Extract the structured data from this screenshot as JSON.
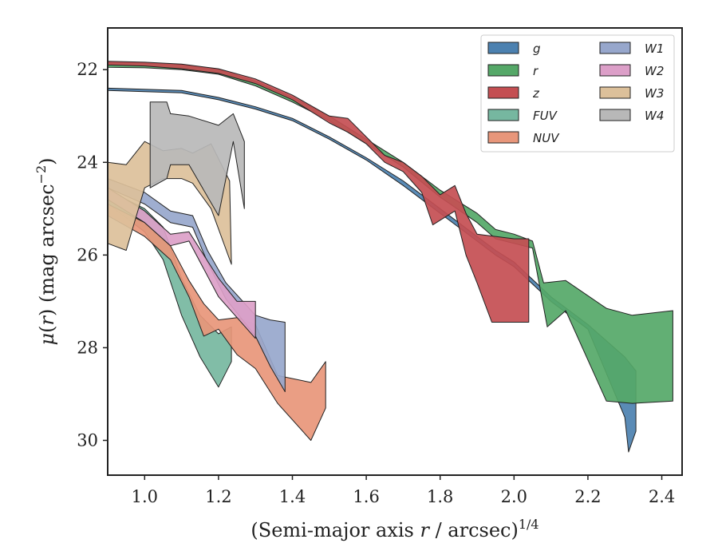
{
  "chart_data": {
    "type": "area",
    "xlabel": "(Semi-major axis r / arcsec)^1/4",
    "xlabel_parts": {
      "pre": "(Semi-major axis ",
      "var": "r",
      "post": " / arcsec)",
      "sup": "1/4"
    },
    "ylabel": "μ(r) (mag arcsec^−2)",
    "ylabel_parts": {
      "var1": "μ",
      "open": "(",
      "var2": "r",
      "close": ")",
      "rest": " (mag arcsec",
      "sup": "−2",
      "end": ")"
    },
    "xlim": [
      0.9,
      2.455
    ],
    "ylim": [
      30.75,
      21.1
    ],
    "y_inverted": true,
    "xticks": [
      1.0,
      1.2,
      1.4,
      1.6,
      1.8,
      2.0,
      2.2,
      2.4
    ],
    "xtick_labels": [
      "1.0",
      "1.2",
      "1.4",
      "1.6",
      "1.8",
      "2.0",
      "2.2",
      "2.4"
    ],
    "yticks": [
      22,
      24,
      26,
      28,
      30
    ],
    "ytick_labels": [
      "22",
      "24",
      "26",
      "28",
      "30"
    ],
    "grid": false,
    "legend": {
      "placement": "top-right",
      "columns": 2
    },
    "series": [
      {
        "name": "g",
        "color": "#4c81b0",
        "upper": [
          [
            0.9,
            22.4
          ],
          [
            1.1,
            22.45
          ],
          [
            1.2,
            22.6
          ],
          [
            1.3,
            22.8
          ],
          [
            1.4,
            23.05
          ],
          [
            1.5,
            23.45
          ],
          [
            1.6,
            23.9
          ],
          [
            1.7,
            24.4
          ],
          [
            1.8,
            25.0
          ],
          [
            1.9,
            25.6
          ],
          [
            1.95,
            25.9
          ],
          [
            2.0,
            26.15
          ],
          [
            2.1,
            26.9
          ],
          [
            2.2,
            27.5
          ],
          [
            2.3,
            28.2
          ],
          [
            2.33,
            28.5
          ]
        ],
        "lower": [
          [
            0.9,
            22.45
          ],
          [
            1.1,
            22.5
          ],
          [
            1.2,
            22.65
          ],
          [
            1.3,
            22.85
          ],
          [
            1.4,
            23.1
          ],
          [
            1.5,
            23.5
          ],
          [
            1.6,
            23.95
          ],
          [
            1.7,
            24.5
          ],
          [
            1.8,
            25.1
          ],
          [
            1.9,
            25.7
          ],
          [
            1.95,
            26.0
          ],
          [
            2.0,
            26.25
          ],
          [
            2.1,
            27.0
          ],
          [
            2.2,
            27.6
          ],
          [
            2.3,
            29.5
          ],
          [
            2.31,
            30.25
          ],
          [
            2.33,
            29.8
          ]
        ]
      },
      {
        "name": "r",
        "color": "#55a868",
        "upper": [
          [
            0.9,
            21.85
          ],
          [
            1.0,
            21.86
          ],
          [
            1.1,
            21.9
          ],
          [
            1.2,
            22.0
          ],
          [
            1.3,
            22.25
          ],
          [
            1.4,
            22.6
          ],
          [
            1.5,
            23.0
          ],
          [
            1.6,
            23.5
          ],
          [
            1.7,
            24.0
          ],
          [
            1.8,
            24.6
          ],
          [
            1.9,
            25.1
          ],
          [
            1.95,
            25.45
          ],
          [
            2.0,
            25.55
          ],
          [
            2.05,
            25.7
          ],
          [
            2.08,
            26.6
          ],
          [
            2.14,
            26.55
          ],
          [
            2.25,
            27.15
          ],
          [
            2.32,
            27.3
          ],
          [
            2.43,
            27.2
          ]
        ],
        "lower": [
          [
            0.9,
            21.95
          ],
          [
            1.0,
            21.96
          ],
          [
            1.1,
            22.0
          ],
          [
            1.2,
            22.1
          ],
          [
            1.3,
            22.35
          ],
          [
            1.4,
            22.7
          ],
          [
            1.5,
            23.1
          ],
          [
            1.6,
            23.6
          ],
          [
            1.7,
            24.1
          ],
          [
            1.8,
            24.75
          ],
          [
            1.9,
            25.3
          ],
          [
            1.95,
            25.65
          ],
          [
            2.0,
            25.75
          ],
          [
            2.05,
            25.85
          ],
          [
            2.09,
            27.55
          ],
          [
            2.14,
            27.2
          ],
          [
            2.25,
            29.15
          ],
          [
            2.32,
            29.2
          ],
          [
            2.43,
            29.15
          ]
        ]
      },
      {
        "name": "z",
        "color": "#c44e52",
        "upper": [
          [
            0.9,
            21.82
          ],
          [
            1.0,
            21.84
          ],
          [
            1.1,
            21.88
          ],
          [
            1.2,
            21.98
          ],
          [
            1.3,
            22.2
          ],
          [
            1.4,
            22.55
          ],
          [
            1.5,
            23.0
          ],
          [
            1.55,
            23.05
          ],
          [
            1.6,
            23.45
          ],
          [
            1.65,
            23.85
          ],
          [
            1.7,
            24.0
          ],
          [
            1.75,
            24.3
          ],
          [
            1.8,
            24.7
          ],
          [
            1.84,
            24.5
          ],
          [
            1.87,
            25.1
          ],
          [
            1.9,
            25.55
          ],
          [
            1.95,
            25.6
          ],
          [
            2.0,
            25.65
          ],
          [
            2.04,
            25.65
          ]
        ],
        "lower": [
          [
            0.9,
            21.9
          ],
          [
            1.0,
            21.92
          ],
          [
            1.1,
            21.98
          ],
          [
            1.2,
            22.08
          ],
          [
            1.3,
            22.3
          ],
          [
            1.4,
            22.65
          ],
          [
            1.5,
            23.15
          ],
          [
            1.55,
            23.35
          ],
          [
            1.6,
            23.6
          ],
          [
            1.65,
            24.0
          ],
          [
            1.7,
            24.2
          ],
          [
            1.75,
            24.65
          ],
          [
            1.78,
            25.35
          ],
          [
            1.84,
            25.05
          ],
          [
            1.87,
            26.0
          ],
          [
            1.9,
            26.6
          ],
          [
            1.94,
            27.45
          ],
          [
            2.0,
            27.45
          ],
          [
            2.04,
            27.45
          ]
        ]
      },
      {
        "name": "FUV",
        "color": "#76b7a0",
        "upper": [
          [
            0.9,
            24.6
          ],
          [
            0.95,
            24.8
          ],
          [
            1.0,
            25.0
          ],
          [
            1.05,
            25.4
          ],
          [
            1.1,
            26.5
          ],
          [
            1.15,
            27.3
          ],
          [
            1.2,
            27.7
          ],
          [
            1.235,
            27.55
          ]
        ],
        "lower": [
          [
            0.9,
            24.9
          ],
          [
            0.95,
            25.2
          ],
          [
            1.0,
            25.5
          ],
          [
            1.05,
            26.1
          ],
          [
            1.1,
            27.3
          ],
          [
            1.15,
            28.2
          ],
          [
            1.2,
            28.85
          ],
          [
            1.235,
            28.3
          ]
        ]
      },
      {
        "name": "NUV",
        "color": "#e8967a",
        "upper": [
          [
            0.9,
            24.9
          ],
          [
            1.0,
            25.3
          ],
          [
            1.07,
            25.8
          ],
          [
            1.12,
            26.55
          ],
          [
            1.16,
            27.05
          ],
          [
            1.2,
            27.4
          ],
          [
            1.25,
            27.35
          ],
          [
            1.3,
            27.5
          ],
          [
            1.36,
            28.6
          ],
          [
            1.45,
            28.75
          ],
          [
            1.49,
            28.3
          ]
        ],
        "lower": [
          [
            0.9,
            25.15
          ],
          [
            1.0,
            25.6
          ],
          [
            1.07,
            26.1
          ],
          [
            1.12,
            26.9
          ],
          [
            1.16,
            27.75
          ],
          [
            1.2,
            27.6
          ],
          [
            1.25,
            28.15
          ],
          [
            1.3,
            28.45
          ],
          [
            1.36,
            29.2
          ],
          [
            1.45,
            30.0
          ],
          [
            1.49,
            29.3
          ]
        ]
      },
      {
        "name": "W1",
        "color": "#97a7cc",
        "upper": [
          [
            0.9,
            24.35
          ],
          [
            1.0,
            24.65
          ],
          [
            1.07,
            25.05
          ],
          [
            1.13,
            25.15
          ],
          [
            1.17,
            25.9
          ],
          [
            1.22,
            26.6
          ],
          [
            1.3,
            27.3
          ],
          [
            1.34,
            27.4
          ],
          [
            1.38,
            27.45
          ]
        ],
        "lower": [
          [
            0.9,
            24.55
          ],
          [
            1.0,
            24.9
          ],
          [
            1.07,
            25.3
          ],
          [
            1.13,
            25.4
          ],
          [
            1.17,
            26.15
          ],
          [
            1.22,
            26.95
          ],
          [
            1.3,
            27.75
          ],
          [
            1.34,
            28.4
          ],
          [
            1.38,
            28.95
          ]
        ]
      },
      {
        "name": "W2",
        "color": "#dc9fc8",
        "upper": [
          [
            0.9,
            24.55
          ],
          [
            1.0,
            25.05
          ],
          [
            1.07,
            25.55
          ],
          [
            1.12,
            25.5
          ],
          [
            1.2,
            26.5
          ],
          [
            1.25,
            27.0
          ],
          [
            1.3,
            27.0
          ]
        ],
        "lower": [
          [
            0.9,
            24.8
          ],
          [
            1.0,
            25.3
          ],
          [
            1.07,
            25.8
          ],
          [
            1.12,
            25.7
          ],
          [
            1.2,
            26.9
          ],
          [
            1.25,
            27.35
          ],
          [
            1.3,
            27.8
          ]
        ]
      },
      {
        "name": "W3",
        "color": "#dcc09a",
        "upper": [
          [
            0.9,
            24.0
          ],
          [
            0.95,
            24.05
          ],
          [
            1.0,
            23.55
          ],
          [
            1.05,
            23.75
          ],
          [
            1.1,
            23.7
          ],
          [
            1.13,
            23.8
          ],
          [
            1.18,
            23.6
          ],
          [
            1.23,
            24.4
          ]
        ],
        "lower": [
          [
            0.9,
            25.75
          ],
          [
            0.95,
            25.9
          ],
          [
            1.0,
            24.55
          ],
          [
            1.05,
            24.35
          ],
          [
            1.1,
            24.35
          ],
          [
            1.13,
            24.45
          ],
          [
            1.18,
            25.0
          ],
          [
            1.235,
            26.2
          ]
        ]
      },
      {
        "name": "W4",
        "color": "#b8b8b8",
        "upper": [
          [
            1.015,
            22.7
          ],
          [
            1.06,
            22.7
          ],
          [
            1.07,
            22.95
          ],
          [
            1.12,
            23.0
          ],
          [
            1.2,
            23.2
          ],
          [
            1.24,
            22.95
          ],
          [
            1.27,
            23.55
          ]
        ],
        "lower": [
          [
            1.015,
            24.55
          ],
          [
            1.06,
            24.35
          ],
          [
            1.07,
            24.05
          ],
          [
            1.12,
            24.05
          ],
          [
            1.2,
            25.15
          ],
          [
            1.24,
            23.55
          ],
          [
            1.27,
            25.0
          ]
        ]
      }
    ]
  }
}
